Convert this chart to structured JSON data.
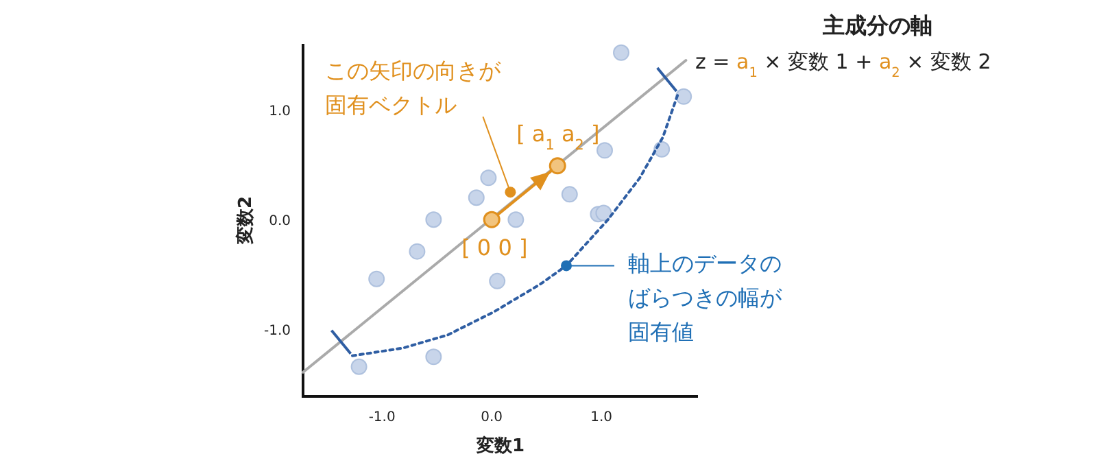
{
  "chart_data": {
    "type": "scatter",
    "title": "主成分の軸",
    "subtitle": "z = a$_{1}$ × 変数 1 + a$_{2}$ × 変数 2",
    "xlabel": "変数1",
    "ylabel": "変数2",
    "xlim": [
      -1.72,
      1.88
    ],
    "ylim": [
      -1.61,
      1.6
    ],
    "xticks": [
      {
        "value": -1,
        "label": "-1.0"
      },
      {
        "value": 0,
        "label": "0.0"
      },
      {
        "value": 1,
        "label": "1.0"
      }
    ],
    "yticks": [
      {
        "value": -1,
        "label": "-1.0"
      },
      {
        "value": 0,
        "label": "0.0"
      },
      {
        "value": 1,
        "label": "1.0"
      }
    ],
    "grid": false,
    "series": [
      {
        "color": "#c8d5ea",
        "marker": "circle",
        "x": [
          1.18,
          1.75,
          1.03,
          1.55,
          -0.03,
          -0.14,
          0.71,
          -0.53,
          0.22,
          0.97,
          1.02,
          -0.68,
          -1.05,
          0.05,
          -0.53,
          -1.21
        ],
        "values": [
          1.52,
          1.12,
          0.63,
          0.64,
          0.38,
          0.2,
          0.23,
          0.0,
          0.0,
          0.05,
          0.06,
          -0.29,
          -0.54,
          -0.56,
          -1.25,
          -1.34
        ]
      },
      {
        "type": "line",
        "color": "#aaaaaa",
        "line_style": "solid",
        "marker": "none",
        "x": [
          -1.72,
          1.77
        ],
        "values": [
          -1.39,
          1.45
        ]
      },
      {
        "type": "line",
        "color": "#2f5ea3",
        "line_style": "dotted",
        "marker": "none",
        "x": [
          -1.27,
          -0.81,
          -0.4,
          0.02,
          0.44,
          0.68,
          1.06,
          1.35,
          1.56,
          1.7
        ],
        "values": [
          -1.24,
          -1.17,
          -1.05,
          -0.84,
          -0.59,
          -0.42,
          0.0,
          0.38,
          0.75,
          1.15
        ]
      },
      {
        "type": "line",
        "color": "#e0901e",
        "line_style": "solid",
        "marker": "circle",
        "x": [
          0,
          0.6
        ],
        "values": [
          0,
          0.49
        ]
      }
    ],
    "annotations": [
      {
        "text": "この矢印の向きが固有ベクトル",
        "x": 0.17,
        "y": 0.25
      },
      {
        "text": "[ a$_{1}$  a$_{2}$ ]",
        "x": 0.6,
        "y": 0.49
      },
      {
        "text": "[ 0  0 ]",
        "x": 0,
        "y": 0
      },
      {
        "text": "軸上のデータのばらつきの幅が固有値",
        "x": 0.68,
        "y": -0.42
      }
    ]
  }
}
